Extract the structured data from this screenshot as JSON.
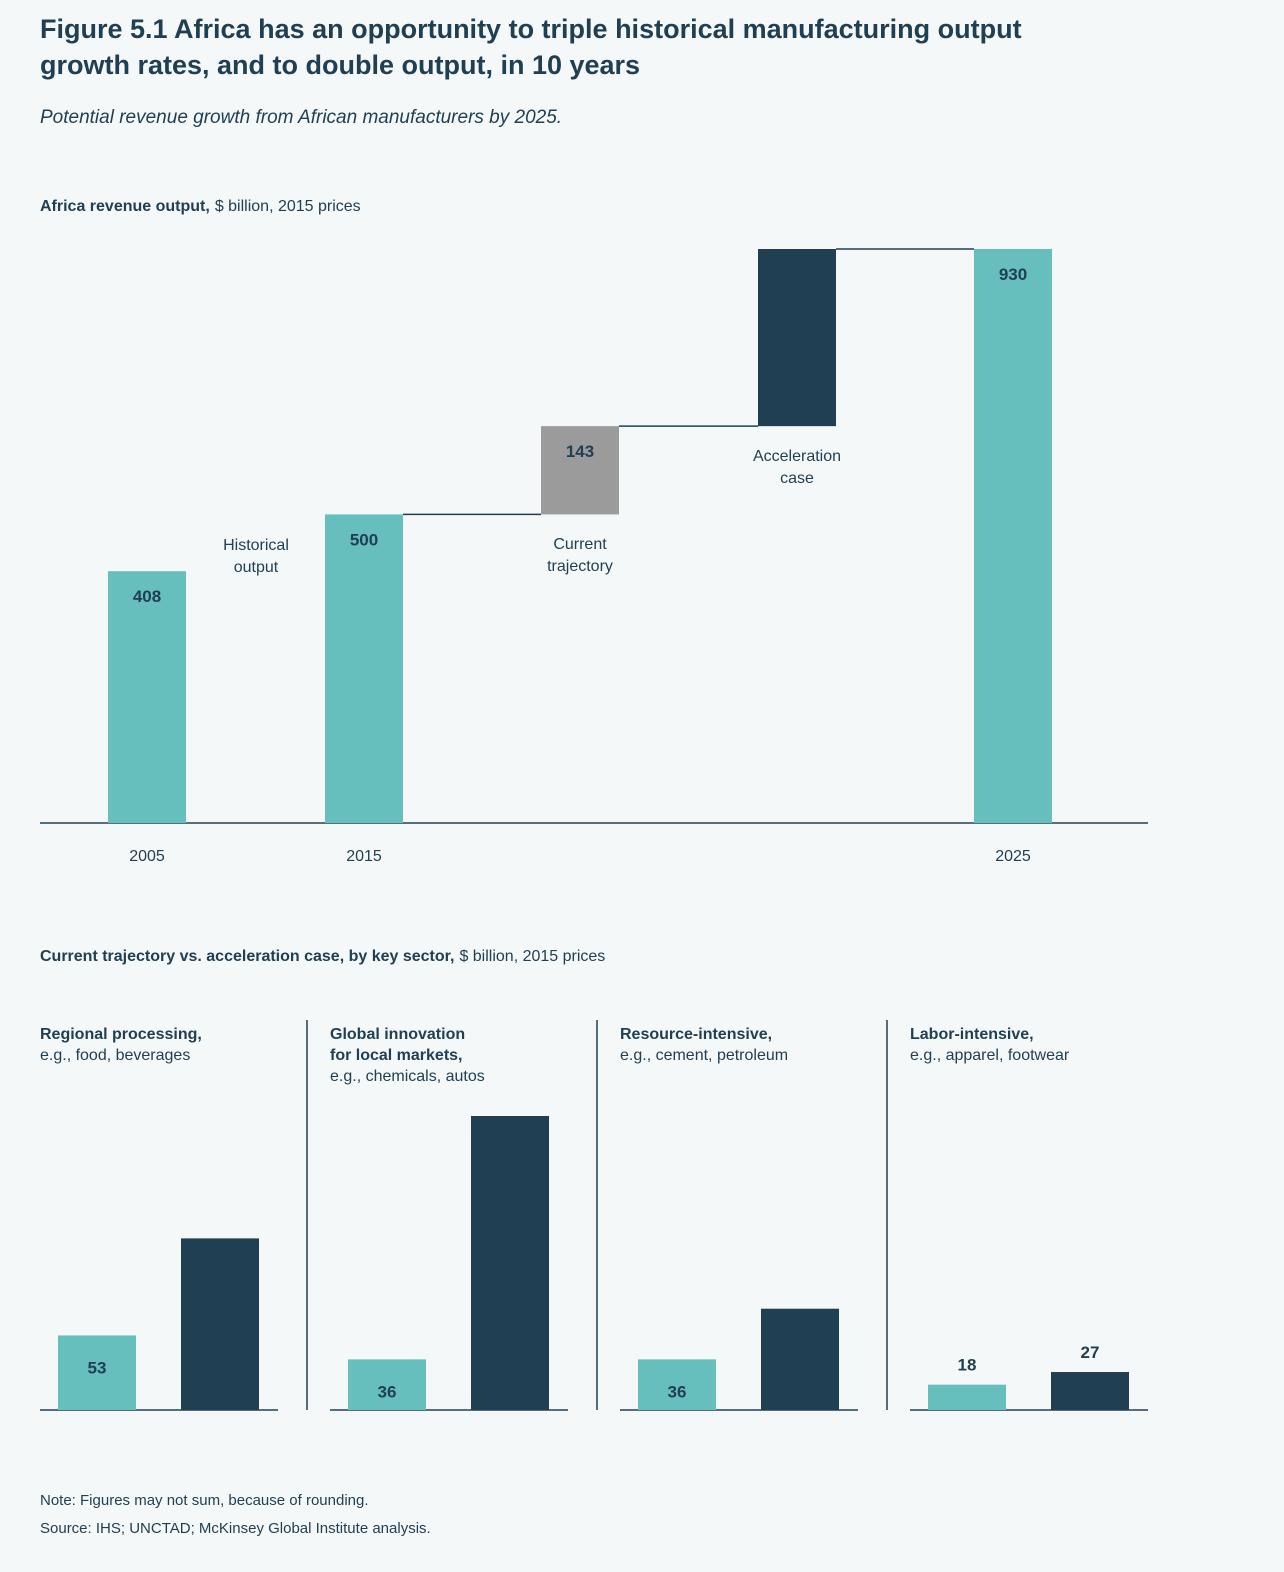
{
  "header": {
    "title": [
      "Figure 5.1 Africa has an opportunity to triple historical manufacturing output",
      "growth rates, and to double output, in 10 years"
    ],
    "subtitle": "Potential revenue growth from African manufacturers by 2025."
  },
  "chart_data": [
    {
      "type": "waterfall",
      "title": "Africa revenue output,",
      "subtitle": "$ billion, 2015 prices",
      "categories": [
        "2005",
        "Historical output",
        "2015",
        "Current trajectory",
        "Acceleration case",
        "2025"
      ],
      "values": [
        408,
        null,
        500,
        143,
        287,
        930
      ],
      "measures": [
        "total",
        null,
        "total",
        "delta",
        "delta",
        "total"
      ],
      "colors": [
        "#66bfbd",
        null,
        "#66bfbd",
        "#9b9b9b",
        "#213f52",
        "#66bfbd"
      ]
    },
    {
      "type": "grouped-bar",
      "title": "Current trajectory vs. acceleration case, by key sector,",
      "subtitle": "$ billion, 2015 prices",
      "colors": [
        "#66bfbd",
        "#213f52"
      ],
      "panels": [
        {
          "title": [
            "Regional processing,"
          ],
          "subtitle": "e.g., food, beverages",
          "values": [
            53,
            122
          ]
        },
        {
          "title": [
            "Global innovation",
            "for local markets,"
          ],
          "subtitle": "e.g., chemicals, autos",
          "values": [
            36,
            209
          ]
        },
        {
          "title": [
            "Resource-intensive,"
          ],
          "subtitle": "e.g., cement, petroleum",
          "values": [
            36,
            72
          ]
        },
        {
          "title": [
            "Labor-intensive,"
          ],
          "subtitle": "e.g., apparel, footwear",
          "values": [
            18,
            27
          ]
        }
      ]
    }
  ],
  "notes": [
    "Note: Figures may not sum, because of rounding.",
    "Source: IHS; UNCTAD; McKinsey Global Institute analysis."
  ]
}
